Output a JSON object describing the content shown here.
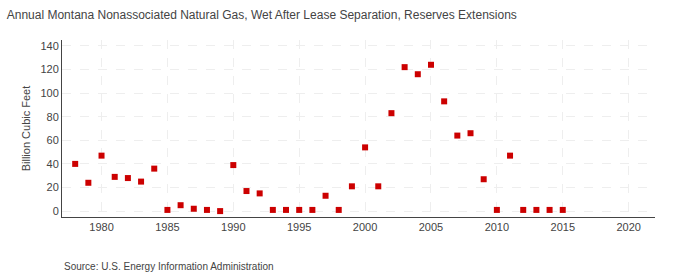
{
  "chart_data": {
    "type": "scatter",
    "title": "Annual Montana Nonassociated Natural Gas, Wet After Lease Separation, Reserves Extensions",
    "ylabel": "Billion Cubic Feet",
    "annotations": [
      "Source: U.S. Energy Information Administration"
    ],
    "color": "#cc0000",
    "marker": "square",
    "grid": true,
    "xlim": [
      1977,
      2022
    ],
    "ylim": [
      -5,
      145
    ],
    "xticks": [
      1980,
      1985,
      1990,
      1995,
      2000,
      2005,
      2010,
      2015,
      2020
    ],
    "yticks": [
      0,
      20,
      40,
      60,
      80,
      100,
      120,
      140
    ],
    "x": [
      1978,
      1979,
      1980,
      1981,
      1982,
      1983,
      1984,
      1985,
      1986,
      1987,
      1988,
      1989,
      1990,
      1991,
      1992,
      1993,
      1994,
      1995,
      1996,
      1997,
      1998,
      1999,
      2000,
      2001,
      2002,
      2003,
      2004,
      2005,
      2006,
      2007,
      2008,
      2009,
      2010,
      2011,
      2012,
      2013,
      2014,
      2015
    ],
    "values": [
      40,
      24,
      47,
      29,
      28,
      25,
      36,
      1,
      5,
      2,
      1,
      0,
      39,
      17,
      15,
      1,
      1,
      1,
      1,
      13,
      1,
      21,
      54,
      21,
      83,
      122,
      116,
      124,
      93,
      64,
      66,
      27,
      1,
      47,
      1,
      1,
      1,
      1
    ]
  }
}
